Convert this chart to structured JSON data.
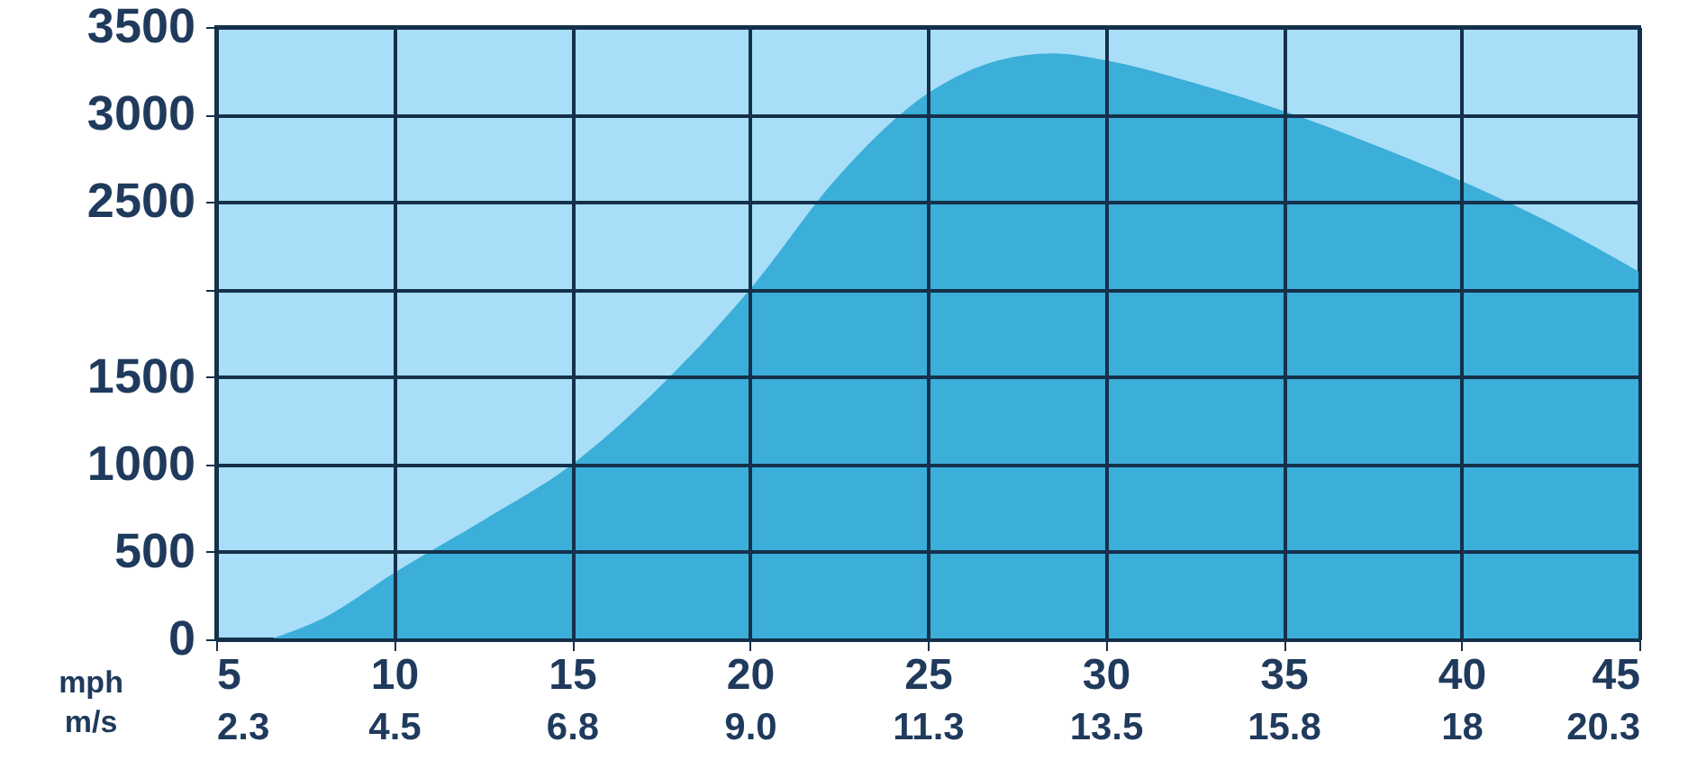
{
  "chart_data": {
    "type": "area",
    "xlabel": "mph",
    "x2label": "m/s",
    "x": [
      6.5,
      8,
      10,
      12.5,
      15,
      17.5,
      20,
      22.5,
      25,
      27,
      28.5,
      30,
      32.5,
      35,
      37.5,
      40,
      42.5,
      45
    ],
    "series": [
      {
        "color": "#3baed9",
        "values": [
          0,
          120,
          380,
          680,
          1000,
          1450,
          2000,
          2650,
          3120,
          3310,
          3350,
          3310,
          3180,
          3020,
          2830,
          2620,
          2380,
          2100
        ]
      }
    ],
    "xlim": [
      5,
      45
    ],
    "xticks": [
      5,
      10,
      15,
      20,
      25,
      30,
      35,
      40,
      45
    ],
    "x2lim": [
      2.25,
      20.25
    ],
    "x2ticks": [
      {
        "value": 2.25,
        "label": "2.3"
      },
      {
        "value": 4.5,
        "label": "4.5"
      },
      {
        "value": 6.75,
        "label": "6.8"
      },
      {
        "value": 9,
        "label": "9.0"
      },
      {
        "value": 11.25,
        "label": "11.3"
      },
      {
        "value": 13.5,
        "label": "13.5"
      },
      {
        "value": 15.75,
        "label": "15.8"
      },
      18,
      {
        "value": 20.25,
        "label": "20.3"
      }
    ],
    "ylim": [
      0,
      3500
    ],
    "yticks": [
      0,
      500,
      1000,
      1500,
      {
        "value": 2000,
        "label": null
      },
      2500,
      3000,
      3500
    ],
    "grid": true
  }
}
